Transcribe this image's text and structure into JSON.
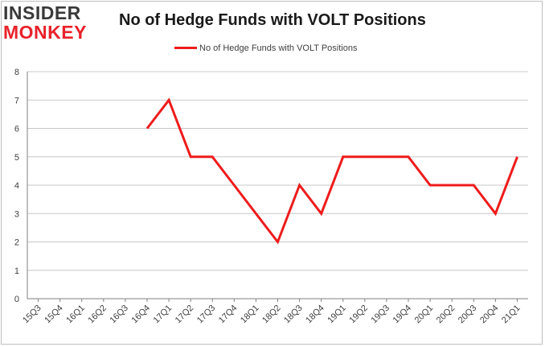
{
  "brand": {
    "top": "INSIDER",
    "bottom": "MONKEY"
  },
  "colors": {
    "series": "#ee1c1c",
    "grid": "#c8c8c8",
    "axis": "#808080",
    "brand_red": "#e8222b"
  },
  "chart_data": {
    "type": "line",
    "title": "No of Hedge Funds with VOLT Positions",
    "xlabel": "",
    "ylabel": "",
    "ylim": [
      0,
      8
    ],
    "yticks": [
      0,
      1,
      2,
      3,
      4,
      5,
      6,
      7,
      8
    ],
    "grid": true,
    "legend_position": "top-center",
    "categories": [
      "15Q3",
      "15Q4",
      "16Q1",
      "16Q2",
      "16Q3",
      "16Q4",
      "17Q1",
      "17Q2",
      "17Q3",
      "17Q4",
      "18Q1",
      "18Q2",
      "18Q3",
      "18Q4",
      "19Q1",
      "19Q2",
      "19Q3",
      "19Q4",
      "20Q1",
      "20Q2",
      "20Q3",
      "20Q4",
      "21Q1"
    ],
    "series": [
      {
        "name": "No of Hedge Funds with VOLT Positions",
        "values": [
          null,
          null,
          null,
          null,
          null,
          6,
          7,
          5,
          5,
          4,
          3,
          2,
          4,
          3,
          5,
          5,
          5,
          5,
          4,
          4,
          4,
          3,
          5
        ]
      }
    ]
  }
}
